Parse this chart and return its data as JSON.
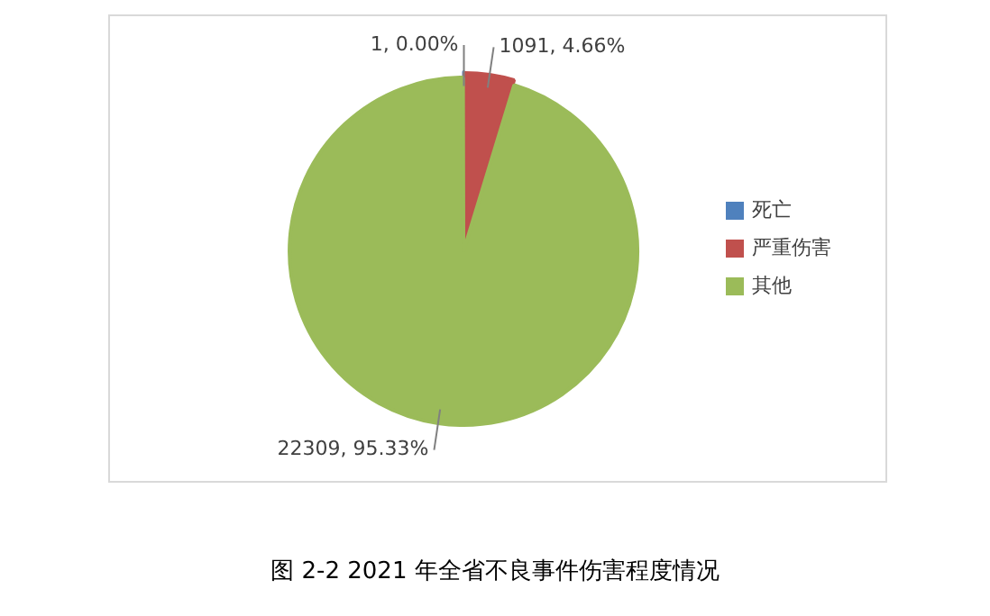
{
  "chart_data": {
    "type": "pie",
    "title": "图 2-2 2021 年全省不良事件伤害程度情况",
    "categories": [
      "死亡",
      "严重伤害",
      "其他"
    ],
    "values": [
      1,
      1091,
      22309
    ],
    "colors": [
      "#4f81bd",
      "#c0504d",
      "#9bbb59"
    ],
    "value_labels": [
      "1, 0.00%",
      "1091, 4.66%",
      "22309, 95.33%"
    ],
    "legend": "right"
  }
}
